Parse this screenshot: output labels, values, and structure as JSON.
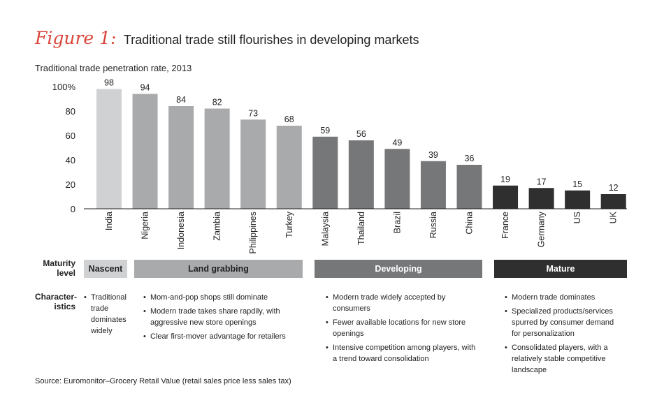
{
  "figure": {
    "label": "Figure 1:",
    "title": "Traditional trade still flourishes in developing markets",
    "subtitle": "Traditional trade penetration rate, 2013"
  },
  "chart_data": {
    "type": "bar",
    "categories": [
      "India",
      "Nigeria",
      "Indonesia",
      "Zambia",
      "Philippines",
      "Turkey",
      "Malaysia",
      "Thailand",
      "Brazil",
      "Russia",
      "China",
      "France",
      "Germany",
      "US",
      "UK"
    ],
    "values": [
      98,
      94,
      84,
      82,
      73,
      68,
      59,
      56,
      49,
      39,
      36,
      19,
      17,
      15,
      12
    ],
    "groups": [
      "nascent",
      "land",
      "land",
      "land",
      "land",
      "land",
      "dev",
      "dev",
      "dev",
      "dev",
      "dev",
      "mature",
      "mature",
      "mature",
      "mature"
    ],
    "group_colors": {
      "nascent": "#d0d1d3",
      "land": "#a9aaac",
      "dev": "#767779",
      "mature": "#2f2f30"
    },
    "y_ticks": [
      "0",
      "20",
      "40",
      "60",
      "80",
      "100%"
    ],
    "ylim": [
      0,
      100
    ],
    "grid": false
  },
  "rows": {
    "maturity": "Maturity level",
    "characteristics": "Character- istics"
  },
  "stages": [
    {
      "name": "Nascent",
      "bg": "#d0d1d3",
      "fg": "#222222"
    },
    {
      "name": "Land grabbing",
      "bg": "#a9aaac",
      "fg": "#222222"
    },
    {
      "name": "Developing",
      "bg": "#767779",
      "fg": "#ffffff"
    },
    {
      "name": "Mature",
      "bg": "#2f2f30",
      "fg": "#ffffff"
    }
  ],
  "characteristics": {
    "nascent": [
      "Traditional trade dominates widely"
    ],
    "land": [
      "Mom-and-pop shops still dominate",
      "Modern trade takes share rapdily, with aggressive new store openings",
      "Clear first-mover advantage for retailers"
    ],
    "developing": [
      "Modern trade widely accepted by consumers",
      "Fewer available locations for new store openings",
      "Intensive competition among players, with a trend toward consolidation"
    ],
    "mature": [
      "Modern trade dominates",
      "Specialized products/services spurred by consumer demand for personalization",
      "Consolidated players, with a relatively stable competitive landscape"
    ]
  },
  "source": "Source: Euromonitor–Grocery Retail Value (retail sales price less sales tax)"
}
